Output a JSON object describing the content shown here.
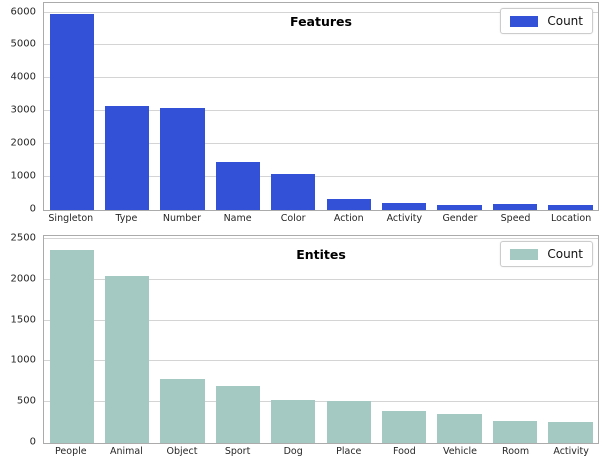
{
  "figure": {
    "background": "#ffffff",
    "grid_color": "#d4d4d4",
    "spine_color": "#ababab"
  },
  "chart_data": [
    {
      "type": "bar",
      "title": "Features",
      "legend": [
        "Count"
      ],
      "legend_position": "upper right",
      "bar_color": "#3351d6",
      "categories": [
        "Singleton",
        "Type",
        "Number",
        "Name",
        "Color",
        "Action",
        "Activity",
        "Gender",
        "Speed",
        "Location"
      ],
      "values": [
        6000,
        3180,
        3120,
        1470,
        1090,
        350,
        230,
        160,
        175,
        155
      ],
      "xlabel": "",
      "ylabel": "",
      "yticks": [
        0,
        1000,
        2000,
        3000,
        4000,
        5000,
        6000
      ],
      "ylim": [
        0,
        6350
      ],
      "grid": true
    },
    {
      "type": "bar",
      "title": "Entites",
      "legend": [
        "Count"
      ],
      "legend_position": "upper right",
      "bar_color": "#a4c9c2",
      "categories": [
        "People",
        "Animal",
        "Object",
        "Sport",
        "Dog",
        "Place",
        "Food",
        "Vehicle",
        "Room",
        "Activity"
      ],
      "values": [
        2390,
        2060,
        795,
        700,
        530,
        515,
        395,
        355,
        275,
        255
      ],
      "xlabel": "",
      "ylabel": "",
      "yticks": [
        0,
        500,
        1000,
        1500,
        2000,
        2500
      ],
      "ylim": [
        0,
        2560
      ],
      "grid": true
    }
  ]
}
